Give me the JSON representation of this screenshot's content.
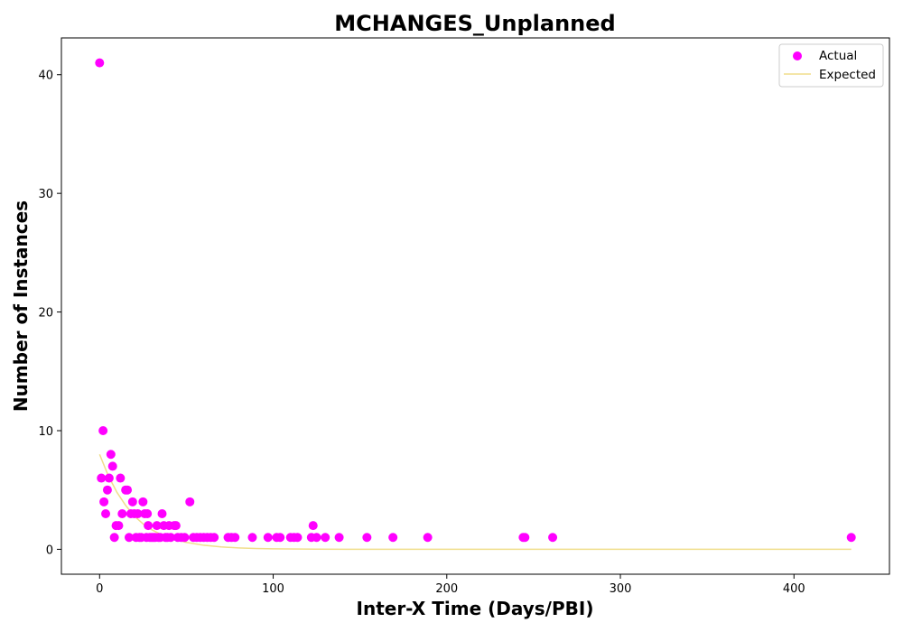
{
  "chart_data": {
    "type": "scatter",
    "title": "MCHANGES_Unplanned",
    "xlabel": "Inter-X Time (Days/PBI)",
    "ylabel": "Number of Instances",
    "xlim": [
      -22,
      455
    ],
    "ylim": [
      -2.1,
      43.1
    ],
    "xticks": [
      0,
      100,
      200,
      300,
      400
    ],
    "yticks": [
      0,
      10,
      20,
      30,
      40
    ],
    "grid": false,
    "legend_position": "top-right",
    "series": [
      {
        "name": "Actual",
        "kind": "scatter",
        "color": "#ff00ff",
        "points": [
          [
            0,
            41
          ],
          [
            1,
            6
          ],
          [
            2,
            10
          ],
          [
            2.5,
            4
          ],
          [
            3.5,
            3
          ],
          [
            4.5,
            5
          ],
          [
            5.5,
            6
          ],
          [
            6.5,
            8
          ],
          [
            7.5,
            7
          ],
          [
            8.5,
            1
          ],
          [
            9.5,
            2
          ],
          [
            11,
            2
          ],
          [
            12,
            6
          ],
          [
            13,
            3
          ],
          [
            15,
            5
          ],
          [
            16,
            5
          ],
          [
            17,
            1
          ],
          [
            18,
            3
          ],
          [
            19,
            4
          ],
          [
            20,
            3
          ],
          [
            21,
            1
          ],
          [
            22,
            3
          ],
          [
            23,
            1
          ],
          [
            24,
            1
          ],
          [
            25,
            4
          ],
          [
            26,
            3
          ],
          [
            27,
            1
          ],
          [
            27.5,
            3
          ],
          [
            28,
            2
          ],
          [
            29,
            1
          ],
          [
            30,
            1
          ],
          [
            31,
            1
          ],
          [
            32,
            1
          ],
          [
            33,
            2
          ],
          [
            34,
            1
          ],
          [
            35,
            1
          ],
          [
            36,
            3
          ],
          [
            37,
            2
          ],
          [
            38,
            1
          ],
          [
            39,
            1
          ],
          [
            40,
            2
          ],
          [
            41,
            1
          ],
          [
            43,
            2
          ],
          [
            44,
            2
          ],
          [
            45,
            1
          ],
          [
            47,
            1
          ],
          [
            49,
            1
          ],
          [
            52,
            4
          ],
          [
            54,
            1
          ],
          [
            56,
            1
          ],
          [
            58,
            1
          ],
          [
            60,
            1
          ],
          [
            62,
            1
          ],
          [
            64,
            1
          ],
          [
            66,
            1
          ],
          [
            74,
            1
          ],
          [
            76,
            1
          ],
          [
            78,
            1
          ],
          [
            88,
            1
          ],
          [
            97,
            1
          ],
          [
            102,
            1
          ],
          [
            104,
            1
          ],
          [
            110,
            1
          ],
          [
            112,
            1
          ],
          [
            114,
            1
          ],
          [
            122,
            1
          ],
          [
            123,
            2
          ],
          [
            125,
            1
          ],
          [
            130,
            1
          ],
          [
            138,
            1
          ],
          [
            154,
            1
          ],
          [
            169,
            1
          ],
          [
            189,
            1
          ],
          [
            244,
            1
          ],
          [
            245,
            1
          ],
          [
            261,
            1
          ],
          [
            433,
            1
          ]
        ]
      },
      {
        "name": "Expected",
        "kind": "line",
        "color": "#f0de8c",
        "points": [
          [
            0,
            8
          ],
          [
            5,
            6.2
          ],
          [
            10,
            4.8
          ],
          [
            15,
            3.7
          ],
          [
            20,
            2.8
          ],
          [
            25,
            2.15
          ],
          [
            30,
            1.65
          ],
          [
            35,
            1.27
          ],
          [
            40,
            0.98
          ],
          [
            50,
            0.58
          ],
          [
            60,
            0.34
          ],
          [
            70,
            0.2
          ],
          [
            80,
            0.12
          ],
          [
            90,
            0.07
          ],
          [
            100,
            0.04
          ],
          [
            125,
            0.01
          ],
          [
            150,
            0
          ],
          [
            200,
            0
          ],
          [
            300,
            0
          ],
          [
            433,
            0
          ]
        ]
      }
    ]
  }
}
